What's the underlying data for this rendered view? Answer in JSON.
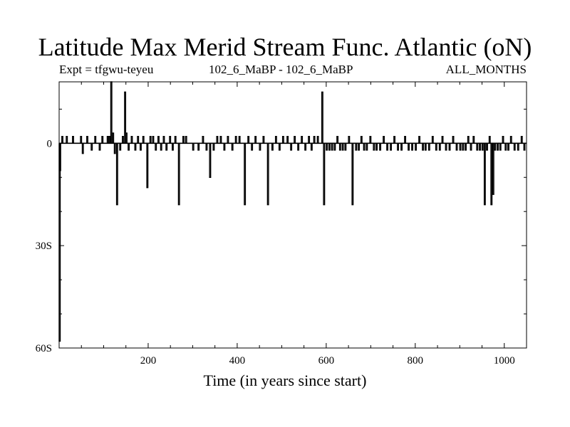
{
  "chart_data": {
    "type": "line",
    "title": "Latitude Max Merid Stream Func. Atlantic (oN)",
    "subtitle_left": "Expt = tfgwu-teyeu",
    "subtitle_center": "102_6_MaBP - 102_6_MaBP",
    "subtitle_right": "ALL_MONTHS",
    "xlabel": "Time (in years since start)",
    "ylabel": "",
    "xlim": [
      0,
      1050
    ],
    "ylim": [
      -60,
      18
    ],
    "x_ticks": [
      200,
      400,
      600,
      800,
      1000
    ],
    "x_tick_labels": [
      "200",
      "400",
      "600",
      "800",
      "1000"
    ],
    "y_ticks": [
      0,
      -30,
      -60
    ],
    "y_tick_labels": [
      "0",
      "30S",
      "60S"
    ],
    "grid": false,
    "legend": "none",
    "series": [
      {
        "baseline": 0,
        "spikes": [
          {
            "x": 0,
            "y": -58
          },
          {
            "x": 1,
            "y": -8
          },
          {
            "x": 6,
            "y": 2
          },
          {
            "x": 16,
            "y": 2
          },
          {
            "x": 30,
            "y": 2
          },
          {
            "x": 48,
            "y": 2
          },
          {
            "x": 52,
            "y": -3
          },
          {
            "x": 62,
            "y": 2
          },
          {
            "x": 72,
            "y": -2
          },
          {
            "x": 80,
            "y": 2
          },
          {
            "x": 90,
            "y": -2
          },
          {
            "x": 96,
            "y": 2
          },
          {
            "x": 108,
            "y": 2
          },
          {
            "x": 112,
            "y": 2
          },
          {
            "x": 116,
            "y": 18
          },
          {
            "x": 120,
            "y": 3
          },
          {
            "x": 124,
            "y": -3
          },
          {
            "x": 129,
            "y": -18
          },
          {
            "x": 136,
            "y": -2
          },
          {
            "x": 142,
            "y": 2
          },
          {
            "x": 147,
            "y": 15
          },
          {
            "x": 150,
            "y": 3
          },
          {
            "x": 155,
            "y": -2
          },
          {
            "x": 162,
            "y": 2
          },
          {
            "x": 170,
            "y": -2
          },
          {
            "x": 176,
            "y": 2
          },
          {
            "x": 182,
            "y": -2
          },
          {
            "x": 188,
            "y": 2
          },
          {
            "x": 197,
            "y": -13
          },
          {
            "x": 204,
            "y": 2
          },
          {
            "x": 210,
            "y": 2
          },
          {
            "x": 216,
            "y": -2
          },
          {
            "x": 222,
            "y": 2
          },
          {
            "x": 228,
            "y": -2
          },
          {
            "x": 234,
            "y": 2
          },
          {
            "x": 240,
            "y": -2
          },
          {
            "x": 248,
            "y": 2
          },
          {
            "x": 254,
            "y": -2
          },
          {
            "x": 260,
            "y": 2
          },
          {
            "x": 268,
            "y": -18
          },
          {
            "x": 278,
            "y": 2
          },
          {
            "x": 284,
            "y": 2
          },
          {
            "x": 300,
            "y": -2
          },
          {
            "x": 312,
            "y": -2
          },
          {
            "x": 322,
            "y": 2
          },
          {
            "x": 330,
            "y": -2
          },
          {
            "x": 338,
            "y": -10
          },
          {
            "x": 346,
            "y": -2
          },
          {
            "x": 354,
            "y": 2
          },
          {
            "x": 362,
            "y": 2
          },
          {
            "x": 370,
            "y": -2
          },
          {
            "x": 378,
            "y": 2
          },
          {
            "x": 388,
            "y": -2
          },
          {
            "x": 396,
            "y": 2
          },
          {
            "x": 404,
            "y": 2
          },
          {
            "x": 416,
            "y": -18
          },
          {
            "x": 424,
            "y": 2
          },
          {
            "x": 432,
            "y": -2
          },
          {
            "x": 440,
            "y": 2
          },
          {
            "x": 450,
            "y": -2
          },
          {
            "x": 458,
            "y": 2
          },
          {
            "x": 468,
            "y": -18
          },
          {
            "x": 478,
            "y": -2
          },
          {
            "x": 486,
            "y": 2
          },
          {
            "x": 494,
            "y": -2
          },
          {
            "x": 502,
            "y": 2
          },
          {
            "x": 512,
            "y": 2
          },
          {
            "x": 520,
            "y": -2
          },
          {
            "x": 528,
            "y": 2
          },
          {
            "x": 536,
            "y": -2
          },
          {
            "x": 544,
            "y": 2
          },
          {
            "x": 552,
            "y": -2
          },
          {
            "x": 560,
            "y": 2
          },
          {
            "x": 566,
            "y": -2
          },
          {
            "x": 572,
            "y": 2
          },
          {
            "x": 580,
            "y": 2
          },
          {
            "x": 590,
            "y": 15
          },
          {
            "x": 594,
            "y": -18
          },
          {
            "x": 600,
            "y": -2
          },
          {
            "x": 606,
            "y": -2
          },
          {
            "x": 612,
            "y": -2
          },
          {
            "x": 618,
            "y": -2
          },
          {
            "x": 624,
            "y": 2
          },
          {
            "x": 630,
            "y": -2
          },
          {
            "x": 636,
            "y": -2
          },
          {
            "x": 642,
            "y": -2
          },
          {
            "x": 650,
            "y": 2
          },
          {
            "x": 658,
            "y": -18
          },
          {
            "x": 666,
            "y": -2
          },
          {
            "x": 672,
            "y": -2
          },
          {
            "x": 678,
            "y": 2
          },
          {
            "x": 684,
            "y": -2
          },
          {
            "x": 690,
            "y": -2
          },
          {
            "x": 698,
            "y": 2
          },
          {
            "x": 706,
            "y": -2
          },
          {
            "x": 712,
            "y": -2
          },
          {
            "x": 720,
            "y": -2
          },
          {
            "x": 728,
            "y": 2
          },
          {
            "x": 736,
            "y": -2
          },
          {
            "x": 744,
            "y": -2
          },
          {
            "x": 752,
            "y": 2
          },
          {
            "x": 760,
            "y": -2
          },
          {
            "x": 768,
            "y": -2
          },
          {
            "x": 776,
            "y": 2
          },
          {
            "x": 784,
            "y": -2
          },
          {
            "x": 792,
            "y": -2
          },
          {
            "x": 800,
            "y": -2
          },
          {
            "x": 808,
            "y": 2
          },
          {
            "x": 816,
            "y": -2
          },
          {
            "x": 822,
            "y": -2
          },
          {
            "x": 830,
            "y": -2
          },
          {
            "x": 838,
            "y": 2
          },
          {
            "x": 846,
            "y": -2
          },
          {
            "x": 854,
            "y": -2
          },
          {
            "x": 860,
            "y": 2
          },
          {
            "x": 868,
            "y": -2
          },
          {
            "x": 876,
            "y": -2
          },
          {
            "x": 884,
            "y": 2
          },
          {
            "x": 892,
            "y": -2
          },
          {
            "x": 900,
            "y": -2
          },
          {
            "x": 906,
            "y": -2
          },
          {
            "x": 912,
            "y": -2
          },
          {
            "x": 918,
            "y": 2
          },
          {
            "x": 924,
            "y": -2
          },
          {
            "x": 930,
            "y": 2
          },
          {
            "x": 938,
            "y": -2
          },
          {
            "x": 944,
            "y": -2
          },
          {
            "x": 950,
            "y": -2
          },
          {
            "x": 955,
            "y": -18
          },
          {
            "x": 960,
            "y": -2
          },
          {
            "x": 966,
            "y": 2
          },
          {
            "x": 970,
            "y": -18
          },
          {
            "x": 974,
            "y": -15
          },
          {
            "x": 978,
            "y": -2
          },
          {
            "x": 984,
            "y": -2
          },
          {
            "x": 990,
            "y": -2
          },
          {
            "x": 996,
            "y": 2
          },
          {
            "x": 1002,
            "y": -2
          },
          {
            "x": 1008,
            "y": -2
          },
          {
            "x": 1014,
            "y": 2
          },
          {
            "x": 1022,
            "y": -2
          },
          {
            "x": 1030,
            "y": -2
          },
          {
            "x": 1038,
            "y": 2
          },
          {
            "x": 1044,
            "y": -2
          }
        ]
      }
    ]
  }
}
